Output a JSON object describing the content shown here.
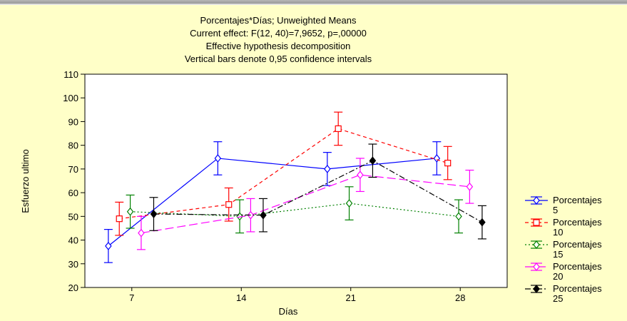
{
  "chart_data": {
    "type": "line",
    "title_lines": [
      "Porcentajes*Días; Unweighted Means",
      "Current effect: F(12, 40)=7,9652, p=,00000",
      "Effective hypothesis decomposition",
      "Vertical bars denote 0,95 confidence intervals"
    ],
    "xlabel": "Días",
    "ylabel": "Esfuerzo ultimo",
    "categories": [
      "7",
      "14",
      "21",
      "28"
    ],
    "ylim": [
      20,
      110
    ],
    "yticks": [
      20,
      30,
      40,
      50,
      60,
      70,
      80,
      90,
      100,
      110
    ],
    "grid": false,
    "legend_position": "right",
    "series": [
      {
        "name": "Porcentajes 5",
        "legend": [
          "Porcentajes",
          "5"
        ],
        "color": "#0000ff",
        "marker": "diamond",
        "dash": "",
        "x": [
          5.5,
          12.5,
          19.5,
          26.5
        ],
        "values": [
          37.5,
          74.5,
          70,
          74.5
        ],
        "lower": [
          30.5,
          67.5,
          63,
          67.5
        ],
        "upper": [
          44.5,
          81.5,
          77,
          81.5
        ]
      },
      {
        "name": "Porcentajes 10",
        "legend": [
          "Porcentajes",
          "10"
        ],
        "color": "#ff0000",
        "marker": "square",
        "dash": "5,4",
        "x": [
          6.2,
          13.2,
          20.2,
          27.2
        ],
        "values": [
          49,
          55,
          87,
          72.5
        ],
        "lower": [
          42,
          48,
          80,
          65.5
        ],
        "upper": [
          56,
          62,
          94,
          79.5
        ]
      },
      {
        "name": "Porcentajes 15",
        "legend": [
          "Porcentajes",
          "15"
        ],
        "color": "#008000",
        "marker": "diamond",
        "dash": "2,3",
        "x": [
          6.9,
          13.9,
          20.9,
          27.9
        ],
        "values": [
          52,
          50,
          55.5,
          50
        ],
        "lower": [
          45,
          43,
          48.5,
          43
        ],
        "upper": [
          59,
          57,
          62.5,
          57
        ]
      },
      {
        "name": "Porcentajes 20",
        "legend": [
          "Porcentajes",
          "20"
        ],
        "color": "#ff00ff",
        "marker": "diamond",
        "dash": "12,5",
        "x": [
          7.6,
          14.6,
          21.6,
          28.6
        ],
        "values": [
          43,
          50.5,
          67.5,
          62.5
        ],
        "lower": [
          36,
          43.5,
          60.5,
          55.5
        ],
        "upper": [
          50,
          57.5,
          74.5,
          69.5
        ]
      },
      {
        "name": "Porcentajes 25",
        "legend": [
          "Porcentajes",
          "25"
        ],
        "color": "#000000",
        "marker": "filled-diamond",
        "dash": "8,3,2,3",
        "x": [
          8.4,
          15.4,
          22.4,
          29.4
        ],
        "values": [
          51,
          50.5,
          73.5,
          47.5
        ],
        "lower": [
          44,
          43.5,
          66.5,
          40.5
        ],
        "upper": [
          58,
          57.5,
          80.5,
          54.5
        ]
      }
    ]
  }
}
